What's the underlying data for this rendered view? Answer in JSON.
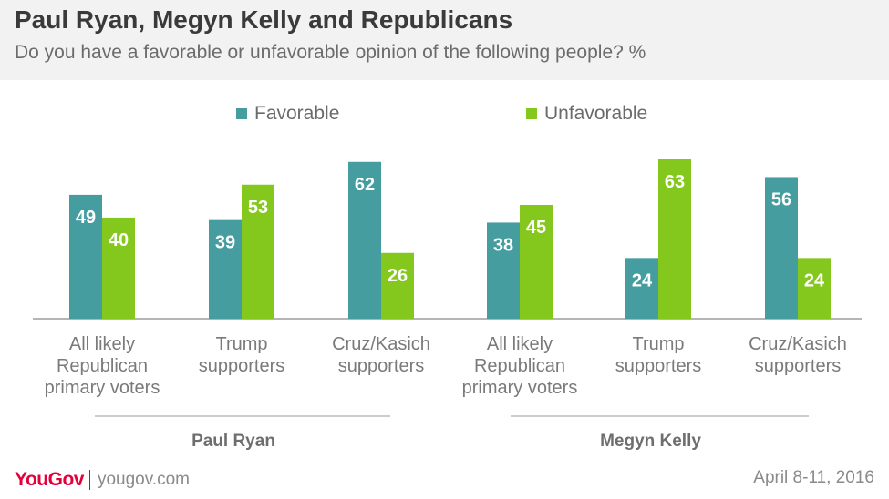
{
  "header": {
    "title": "Paul Ryan, Megyn Kelly and Republicans",
    "subtitle": "Do you have a favorable or unfavorable opinion of the following people? %"
  },
  "colors": {
    "favorable": "#459da0",
    "unfavorable": "#85c81d"
  },
  "legend": {
    "favorable": "Favorable",
    "unfavorable": "Unfavorable"
  },
  "chart_data": {
    "type": "bar",
    "title": "Paul Ryan, Megyn Kelly and Republicans",
    "subtitle": "Do you have a favorable or unfavorable opinion of the following people? %",
    "categories": [
      [
        "All likely",
        "Republican",
        "primary voters"
      ],
      [
        "Trump",
        "supporters"
      ],
      [
        "Cruz/Kasich",
        "supporters"
      ],
      [
        "All likely",
        "Republican",
        "primary voters"
      ],
      [
        "Trump",
        "supporters"
      ],
      [
        "Cruz/Kasich",
        "supporters"
      ]
    ],
    "groups": [
      {
        "name": "Paul Ryan",
        "category_indices": [
          0,
          1,
          2
        ]
      },
      {
        "name": "Megyn Kelly",
        "category_indices": [
          3,
          4,
          5
        ]
      }
    ],
    "series": [
      {
        "name": "Favorable",
        "values": [
          49,
          39,
          62,
          38,
          24,
          56
        ]
      },
      {
        "name": "Unfavorable",
        "values": [
          40,
          53,
          26,
          45,
          63,
          24
        ]
      }
    ],
    "ylim": [
      0,
      63
    ],
    "grid": false,
    "legend_position": "top-center"
  },
  "footer": {
    "logo": "YouGov",
    "site": "yougov.com",
    "date": "April 8-11, 2016"
  }
}
